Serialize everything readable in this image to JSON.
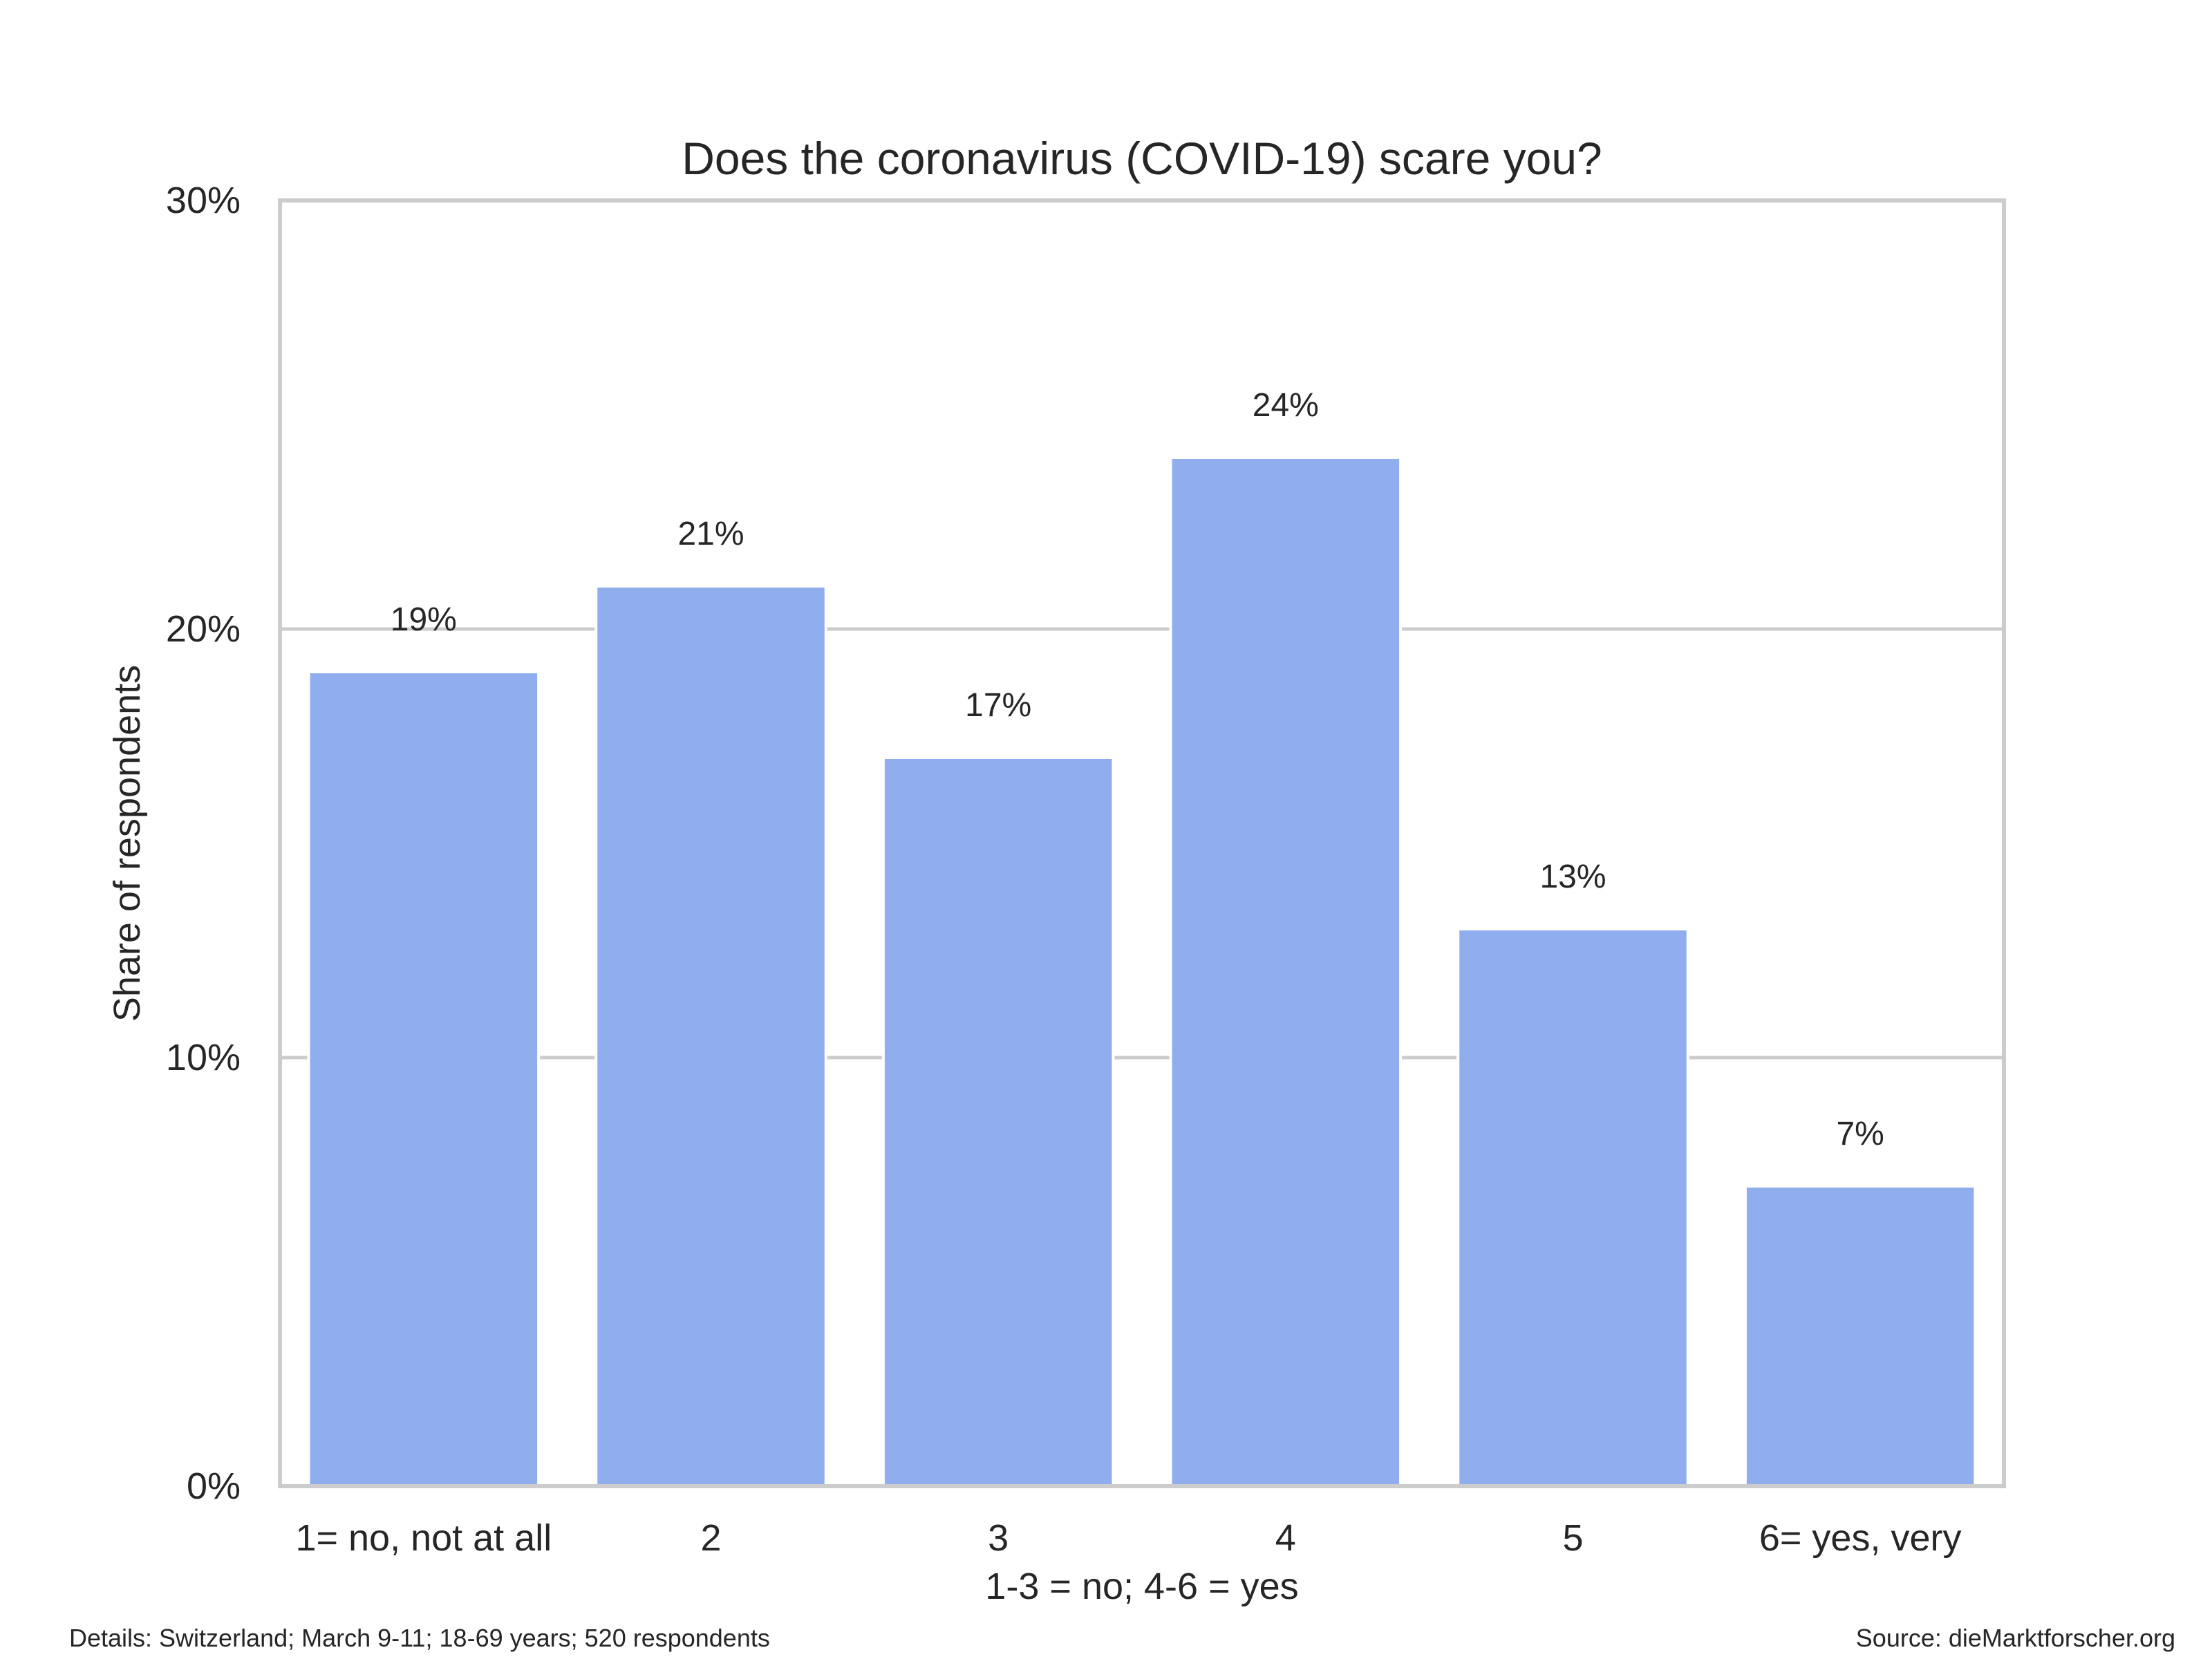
{
  "chart_data": {
    "type": "bar",
    "title": "Does the coronavirus (COVID-19) scare you?",
    "xlabel": "1-3 = no; 4-6 = yes",
    "ylabel": "Share of respondents",
    "categories": [
      "1= no, not at all",
      "2",
      "3",
      "4",
      "5",
      "6= yes, very"
    ],
    "values": [
      19,
      21,
      17,
      24,
      13,
      7
    ],
    "data_labels": [
      "19%",
      "21%",
      "17%",
      "24%",
      "13%",
      "7%"
    ],
    "ylim": [
      0,
      30
    ],
    "y_ticks": [
      0,
      10,
      20,
      30
    ],
    "y_tick_labels": [
      "0%",
      "10%",
      "20%",
      "30%"
    ],
    "grid": "horizontal",
    "bar_color": "#90aeed",
    "grid_color": "#cccccc"
  },
  "footer": {
    "details": "Details: Switzerland; March 9-11; 18-69 years; 520 respondents",
    "source": "Source: dieMarktforscher.org"
  }
}
